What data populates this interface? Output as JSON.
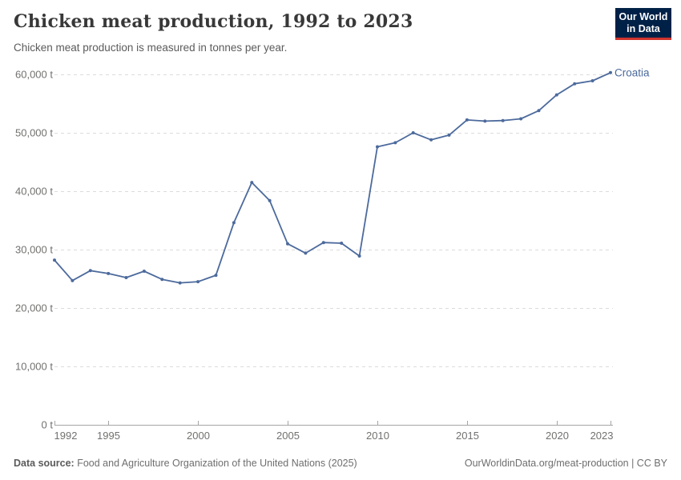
{
  "header": {
    "title": "Chicken meat production, 1992 to 2023",
    "subtitle": "Chicken meat production is measured in tonnes per year.",
    "logo": {
      "line1": "Our World",
      "line2": "in Data"
    }
  },
  "chart_data": {
    "type": "line",
    "title": "Chicken meat production, 1992 to 2023",
    "ylabel": "tonnes per year",
    "unit": "t",
    "grid": "horizontal-dashed",
    "legend_position": "end-of-line-label",
    "xlim": [
      1992,
      2023
    ],
    "ylim": [
      0,
      60000
    ],
    "xticks": [
      1992,
      1995,
      2000,
      2005,
      2010,
      2015,
      2020,
      2023
    ],
    "yticks": [
      {
        "value": 0,
        "label": "0 t"
      },
      {
        "value": 10000,
        "label": "10,000 t"
      },
      {
        "value": 20000,
        "label": "20,000 t"
      },
      {
        "value": 30000,
        "label": "30,000 t"
      },
      {
        "value": 40000,
        "label": "40,000 t"
      },
      {
        "value": 50000,
        "label": "50,000 t"
      },
      {
        "value": 60000,
        "label": "60,000 t"
      }
    ],
    "x": [
      1992,
      1993,
      1994,
      1995,
      1996,
      1997,
      1998,
      1999,
      2000,
      2001,
      2002,
      2003,
      2004,
      2005,
      2006,
      2007,
      2008,
      2009,
      2010,
      2011,
      2012,
      2013,
      2014,
      2015,
      2016,
      2017,
      2018,
      2019,
      2020,
      2021,
      2022,
      2023
    ],
    "series": [
      {
        "name": "Croatia",
        "color": "#4c6a9c",
        "values": [
          28200,
          24700,
          26400,
          25900,
          25200,
          26300,
          24900,
          24300,
          24500,
          25600,
          34600,
          41500,
          38400,
          31000,
          29400,
          31200,
          31100,
          28900,
          47600,
          48300,
          50000,
          48800,
          49600,
          52200,
          52000,
          52100,
          52400,
          53800,
          56500,
          58400,
          58900,
          60300
        ]
      }
    ]
  },
  "footer": {
    "source_label": "Data source:",
    "source_text": " Food and Agriculture Organization of the United Nations (2025)",
    "right_text": "OurWorldinData.org/meat-production | CC BY"
  },
  "colors": {
    "line": "#4c6a9c",
    "entity_label": "#4c6a9c",
    "grid": "#dcdcdc",
    "axis": "#a5a5a5",
    "tick_label": "#72716f",
    "logo_bg": "#002147",
    "logo_stripe": "#d0342c"
  }
}
